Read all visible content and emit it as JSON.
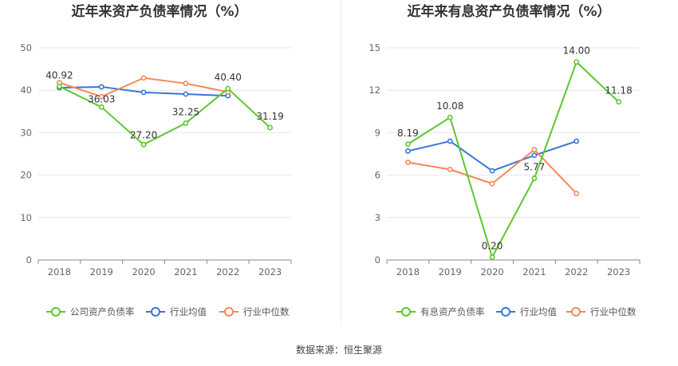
{
  "chart_data": [
    {
      "type": "line",
      "title": "近年来资产负债率情况（%）",
      "categories": [
        "2018",
        "2019",
        "2020",
        "2021",
        "2022",
        "2023"
      ],
      "ylim": [
        0,
        50
      ],
      "yticks": [
        "0",
        "10",
        "20",
        "30",
        "40",
        "50"
      ],
      "grid": true,
      "legend_position": "bottom",
      "series": [
        {
          "name": "公司资产负债率",
          "color": "#5cc82c",
          "values": [
            40.92,
            36.03,
            27.2,
            32.25,
            40.4,
            31.19
          ],
          "labels": [
            "40.92",
            "36.03",
            "27.20",
            "32.25",
            "40.40",
            "31.19"
          ]
        },
        {
          "name": "行业均值",
          "color": "#3b74d6",
          "values": [
            40.6,
            40.8,
            39.5,
            39.1,
            38.7,
            null
          ]
        },
        {
          "name": "行业中位数",
          "color": "#f08a5d",
          "values": [
            41.8,
            38.5,
            42.9,
            41.6,
            39.6,
            null
          ]
        }
      ]
    },
    {
      "type": "line",
      "title": "近年来有息资产负债率情况（%）",
      "categories": [
        "2018",
        "2019",
        "2020",
        "2021",
        "2022",
        "2023"
      ],
      "ylim": [
        0,
        15
      ],
      "yticks": [
        "0",
        "3",
        "6",
        "9",
        "12",
        "15"
      ],
      "grid": true,
      "legend_position": "bottom",
      "series": [
        {
          "name": "有息资产负债率",
          "color": "#5cc82c",
          "values": [
            8.19,
            10.08,
            0.2,
            5.77,
            14.0,
            11.18
          ],
          "labels": [
            "8.19",
            "10.08",
            "0.20",
            "5.77",
            "14.00",
            "11.18"
          ]
        },
        {
          "name": "行业均值",
          "color": "#3b74d6",
          "values": [
            7.7,
            8.4,
            6.3,
            7.4,
            8.4,
            null
          ]
        },
        {
          "name": "行业中位数",
          "color": "#f08a5d",
          "values": [
            6.9,
            6.4,
            5.4,
            7.8,
            4.7,
            null
          ]
        }
      ]
    }
  ],
  "footer": {
    "source": "数据来源：恒生聚源"
  }
}
